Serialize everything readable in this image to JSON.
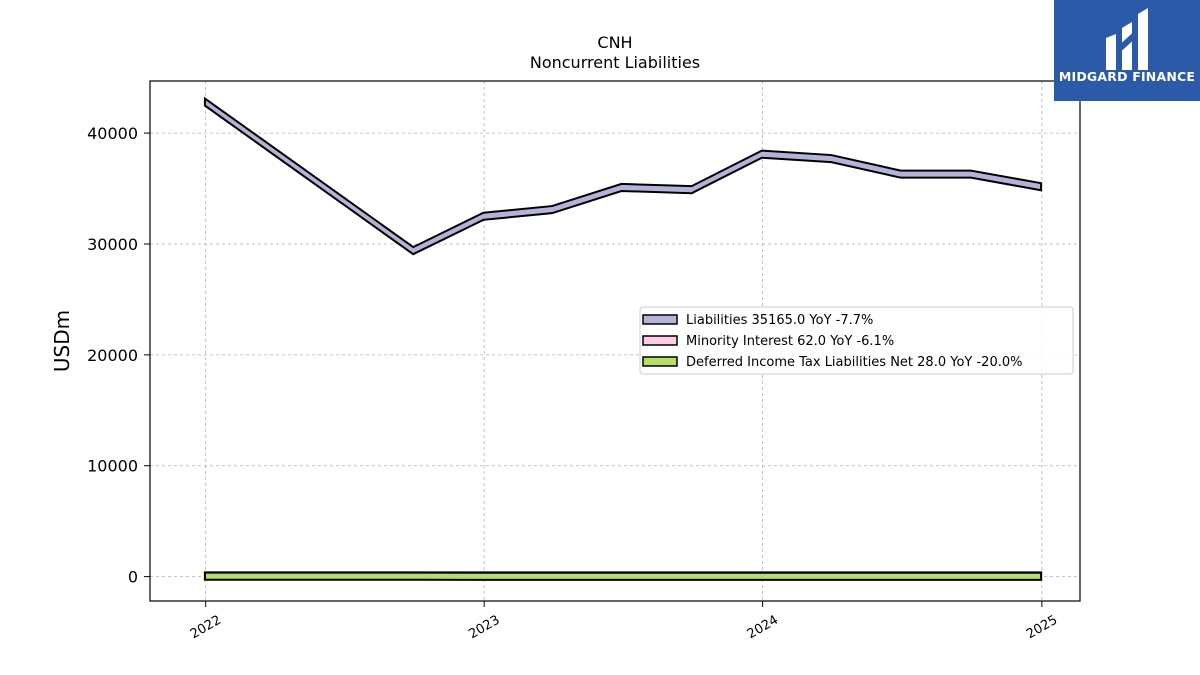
{
  "brand": {
    "name": "MIDGARD FINANCE",
    "bg_color": "#2a5aa8",
    "icon": "midgard-logo-icon"
  },
  "chart_data": {
    "type": "area",
    "title": "CNH",
    "subtitle": "Noncurrent  Liabilities",
    "ylabel": "USDm",
    "xlabel": "",
    "ylim": [
      -2200,
      44700
    ],
    "xlim": [
      "2021-10-20",
      "2025-02-20"
    ],
    "yticks": [
      0,
      10000,
      20000,
      30000,
      40000
    ],
    "xticks": [
      {
        "date": "2022-01-01",
        "label": "2022"
      },
      {
        "date": "2023-01-01",
        "label": "2023"
      },
      {
        "date": "2024-01-01",
        "label": "2024"
      },
      {
        "date": "2025-01-01",
        "label": "2025"
      }
    ],
    "grid": true,
    "legend_position": "center-right",
    "x": [
      "2021-12-31",
      "2022-09-30",
      "2022-12-31",
      "2023-03-31",
      "2023-06-30",
      "2023-09-30",
      "2023-12-31",
      "2024-03-31",
      "2024-06-30",
      "2024-09-30",
      "2024-12-31"
    ],
    "series": [
      {
        "name": "Liabilities",
        "legend_label": "Liabilities  35165.0 YoY -7.7%",
        "color": "#b3b3d9",
        "values": [
          42800,
          29400,
          32500,
          33100,
          35100,
          34900,
          38100,
          37700,
          36300,
          36300,
          35165
        ]
      },
      {
        "name": "Minority Interest",
        "legend_label": "Minority Interest  62.0 YoY -6.1%",
        "color": "#fccde5",
        "values": [
          66,
          66,
          66,
          66,
          66,
          66,
          66,
          64,
          63,
          63,
          62
        ]
      },
      {
        "name": "Deferred Income Tax Liabilities Net",
        "legend_label": "Deferred Income Tax Liabilities Net  28.0 YoY -20.0%",
        "color": "#b3de69",
        "values": [
          35,
          35,
          30,
          30,
          30,
          30,
          30,
          30,
          29,
          29,
          28
        ]
      }
    ]
  }
}
